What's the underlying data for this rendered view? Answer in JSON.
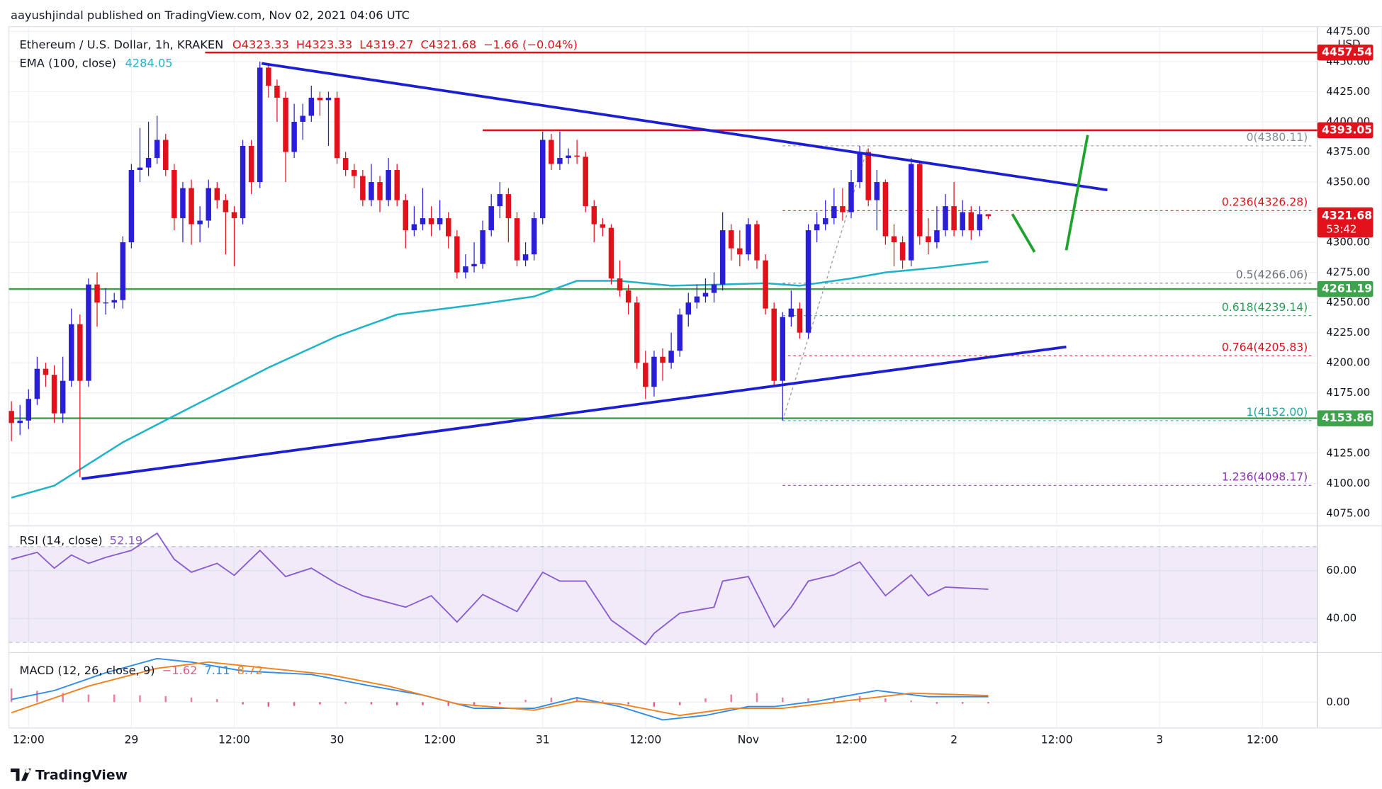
{
  "page_header": "aayushjindal published on TradingView.com, Nov 02, 2021 04:06 UTC",
  "footer": "TradingView",
  "chart_data": [
    {
      "type": "candlestick",
      "title": "Ethereum / U.S. Dollar, 1h, KRAKEN",
      "legend": [
        "O4323.33",
        "H4323.33",
        "L4319.27",
        "C4321.68",
        "−1.66 (−0.04%)"
      ],
      "currency": "USD",
      "countdown": "53:42",
      "xlim": [
        -0.3,
        152.4
      ],
      "xticks": [
        {
          "value": 2,
          "label": "12:00"
        },
        {
          "value": 14,
          "label": "29"
        },
        {
          "value": 26,
          "label": "12:00"
        },
        {
          "value": 38,
          "label": "30"
        },
        {
          "value": 50,
          "label": "12:00"
        },
        {
          "value": 62,
          "label": "31"
        },
        {
          "value": 74,
          "label": "12:00"
        },
        {
          "value": 86,
          "label": "Nov"
        },
        {
          "value": 98,
          "label": "12:00"
        },
        {
          "value": 110,
          "label": "2"
        },
        {
          "value": 122,
          "label": "12:00"
        },
        {
          "value": 134,
          "label": "3"
        },
        {
          "value": 146,
          "label": "12:00"
        }
      ],
      "ylim": [
        4066,
        4479
      ],
      "yticks": [
        {
          "value": 4075,
          "label": "4075.00"
        },
        {
          "value": 4100,
          "label": "4100.00"
        },
        {
          "value": 4125,
          "label": "4125.00"
        },
        {
          "value": 4150,
          "label": "4150.00"
        },
        {
          "value": 4175,
          "label": "4175.00"
        },
        {
          "value": 4200,
          "label": "4200.00"
        },
        {
          "value": 4225,
          "label": "4225.00"
        },
        {
          "value": 4250,
          "label": "4250.00"
        },
        {
          "value": 4275,
          "label": "4275.00"
        },
        {
          "value": 4300,
          "label": "4300.00"
        },
        {
          "value": 4325,
          "label": "4325.00"
        },
        {
          "value": 4350,
          "label": "4350.00"
        },
        {
          "value": 4375,
          "label": "4375.00"
        },
        {
          "value": 4400,
          "label": "4400.00"
        },
        {
          "value": 4425,
          "label": "4425.00"
        },
        {
          "value": 4450,
          "label": "4450.00"
        },
        {
          "value": 4475,
          "label": "4475.00"
        }
      ],
      "grid": true,
      "up_color": "#2a1fd6",
      "down_color": "#e3111b",
      "open": [
        4160,
        4150,
        4152,
        4170,
        4195,
        4190,
        4158,
        4185,
        4232,
        4185,
        4265,
        4250,
        4250,
        4252,
        4300,
        4360,
        4362,
        4370,
        4385,
        4360,
        4320,
        4345,
        4315,
        4318,
        4345,
        4335,
        4325,
        4320,
        4380,
        4350,
        4445,
        4430,
        4420,
        4375,
        4400,
        4405,
        4420,
        4418,
        4420,
        4370,
        4360,
        4355,
        4335,
        4350,
        4335,
        4360,
        4335,
        4310,
        4315,
        4320,
        4315,
        4320,
        4305,
        4275,
        4280,
        4282,
        4310,
        4330,
        4340,
        4320,
        4285,
        4290,
        4320,
        4385,
        4365,
        4370,
        4372,
        4371,
        4330,
        4315,
        4312,
        4270,
        4260,
        4250,
        4200,
        4180,
        4205,
        4200,
        4210,
        4240,
        4250,
        4255,
        4258,
        4265,
        4310,
        4295,
        4290,
        4315,
        4285,
        4245,
        4185,
        4238,
        4245,
        4225,
        4310,
        4315,
        4320,
        4330,
        4325,
        4350,
        4375,
        4335,
        4350,
        4305,
        4300,
        4285,
        4365,
        4305,
        4300,
        4310,
        4330,
        4310,
        4325,
        4310,
        4323.33
      ],
      "high": [
        4168,
        4165,
        4178,
        4205,
        4200,
        4198,
        4205,
        4245,
        4240,
        4270,
        4275,
        4262,
        4258,
        4305,
        4365,
        4395,
        4400,
        4405,
        4390,
        4365,
        4350,
        4352,
        4330,
        4352,
        4350,
        4340,
        4330,
        4385,
        4385,
        4450,
        4448,
        4435,
        4425,
        4415,
        4415,
        4430,
        4425,
        4425,
        4425,
        4375,
        4365,
        4360,
        4365,
        4355,
        4370,
        4365,
        4340,
        4330,
        4345,
        4330,
        4335,
        4325,
        4310,
        4290,
        4300,
        4318,
        4340,
        4350,
        4345,
        4325,
        4300,
        4325,
        4392,
        4390,
        4392,
        4378,
        4385,
        4375,
        4335,
        4320,
        4315,
        4285,
        4265,
        4255,
        4210,
        4210,
        4212,
        4225,
        4245,
        4258,
        4265,
        4270,
        4275,
        4325,
        4315,
        4310,
        4320,
        4318,
        4290,
        4250,
        4242,
        4260,
        4250,
        4315,
        4325,
        4335,
        4345,
        4345,
        4360,
        4380,
        4378,
        4360,
        4352,
        4315,
        4305,
        4370,
        4368,
        4320,
        4330,
        4340,
        4350,
        4335,
        4330,
        4330,
        4323.33
      ],
      "low": [
        4135,
        4140,
        4145,
        4165,
        4180,
        4150,
        4150,
        4180,
        4105,
        4180,
        4230,
        4240,
        4245,
        4245,
        4295,
        4350,
        4355,
        4365,
        4355,
        4310,
        4300,
        4298,
        4300,
        4312,
        4328,
        4290,
        4280,
        4315,
        4340,
        4345,
        4420,
        4400,
        4350,
        4370,
        4385,
        4400,
        4405,
        4380,
        4365,
        4355,
        4345,
        4330,
        4330,
        4325,
        4330,
        4330,
        4295,
        4305,
        4310,
        4305,
        4310,
        4295,
        4270,
        4270,
        4275,
        4278,
        4305,
        4320,
        4300,
        4280,
        4280,
        4285,
        4315,
        4360,
        4360,
        4365,
        4365,
        4325,
        4300,
        4305,
        4265,
        4255,
        4240,
        4195,
        4170,
        4172,
        4185,
        4195,
        4205,
        4230,
        4245,
        4250,
        4250,
        4260,
        4285,
        4280,
        4285,
        4278,
        4240,
        4180,
        4152,
        4230,
        4220,
        4220,
        4300,
        4310,
        4315,
        4318,
        4320,
        4345,
        4330,
        4310,
        4298,
        4280,
        4278,
        4280,
        4298,
        4290,
        4295,
        4305,
        4305,
        4305,
        4302,
        4305,
        4319.27
      ],
      "close": [
        4150,
        4152,
        4170,
        4195,
        4190,
        4158,
        4185,
        4232,
        4185,
        4265,
        4250,
        4250,
        4252,
        4300,
        4360,
        4362,
        4370,
        4385,
        4360,
        4320,
        4345,
        4315,
        4318,
        4345,
        4335,
        4325,
        4320,
        4380,
        4350,
        4445,
        4430,
        4420,
        4375,
        4400,
        4405,
        4420,
        4418,
        4420,
        4370,
        4360,
        4355,
        4335,
        4350,
        4335,
        4360,
        4335,
        4310,
        4315,
        4320,
        4315,
        4320,
        4305,
        4275,
        4280,
        4282,
        4310,
        4330,
        4340,
        4320,
        4285,
        4290,
        4320,
        4385,
        4365,
        4370,
        4372,
        4371,
        4330,
        4315,
        4312,
        4270,
        4260,
        4250,
        4200,
        4180,
        4205,
        4200,
        4210,
        4240,
        4250,
        4255,
        4258,
        4265,
        4310,
        4295,
        4290,
        4315,
        4285,
        4245,
        4185,
        4238,
        4245,
        4225,
        4310,
        4315,
        4320,
        4330,
        4325,
        4350,
        4375,
        4335,
        4350,
        4305,
        4300,
        4285,
        4365,
        4305,
        4300,
        4310,
        4330,
        4310,
        4325,
        4310,
        4323.33,
        4321.68
      ],
      "ema": {
        "name": "EMA (100, close)",
        "color": "#1eb3c8",
        "x": [
          0,
          5,
          13,
          19,
          30,
          38,
          45,
          54,
          61,
          66,
          71,
          77,
          83,
          88,
          92,
          98,
          102,
          108,
          114
        ],
        "values": [
          4088,
          4098,
          4134,
          4156,
          4196,
          4222,
          4240,
          4248,
          4255,
          4268,
          4268,
          4264,
          4265,
          4266,
          4264,
          4270,
          4275,
          4279,
          4284.05
        ]
      },
      "hlines": [
        {
          "value": 4457.54,
          "start": 22.6,
          "color": "#e3111b"
        },
        {
          "value": 4393.05,
          "start": 55,
          "color": "#e3111b"
        },
        {
          "value": 4261.19,
          "start": -0.3,
          "color": "#3fa34d"
        },
        {
          "value": 4153.86,
          "start": -0.3,
          "color": "#3fa34d"
        }
      ],
      "trendlines": [
        {
          "points": [
            [
              29.2,
              4448.5
            ],
            [
              127.9,
              4343.4
            ]
          ],
          "color": "#1c1fd0"
        },
        {
          "points": [
            [
              8.2,
              4103.7
            ],
            [
              123.1,
              4213.2
            ]
          ],
          "color": "#1c1fd0"
        }
      ],
      "arrows": [
        {
          "points": [
            [
              116.8,
              4323.5
            ],
            [
              119.4,
              4291.9
            ]
          ],
          "color": "#1fa32e"
        },
        {
          "points": [
            [
              123.1,
              4293.4
            ],
            [
              125.6,
              4389.0
            ]
          ],
          "color": "#1fa32e"
        }
      ],
      "fib": {
        "range": [
          90,
          151.7
        ],
        "diagonal": [
          [
            90,
            4152
          ],
          [
            100,
            4380.11
          ]
        ],
        "levels": [
          {
            "label": "0(4380.11)",
            "value": 4380.11,
            "color": "#8a8e99"
          },
          {
            "label": "0.236(4326.28)",
            "value": 4326.28,
            "color": "#e3111b"
          },
          {
            "label": "0.5(4266.06)",
            "value": 4266.06,
            "color": "#6b6f7a"
          },
          {
            "label": "0.618(4239.14)",
            "value": 4239.14,
            "color": "#2e9e55"
          },
          {
            "label": "0.764(4205.83)",
            "value": 4205.83,
            "color": "#d3121b"
          },
          {
            "label": "1(4152.00)",
            "value": 4152.0,
            "color": "#1ea5a0"
          },
          {
            "label": "1.236(4098.17)",
            "value": 4098.17,
            "color": "#8e2fb5"
          }
        ]
      }
    },
    {
      "type": "line",
      "name": "RSI (14, close)",
      "color": "#8a5cd1",
      "band": [
        30,
        70
      ],
      "ylim": [
        26.5,
        77.5
      ],
      "yticks": [
        {
          "value": 60,
          "label": "60.00"
        },
        {
          "value": 40,
          "label": "40.00"
        }
      ],
      "x": [
        0,
        3,
        5,
        7,
        9,
        11,
        14,
        17,
        19,
        21,
        24,
        26,
        29,
        32,
        35,
        38,
        41,
        46,
        49,
        52,
        55,
        59,
        62,
        64,
        67,
        70,
        74,
        75,
        78,
        82,
        83,
        86,
        89,
        91,
        93,
        96,
        99,
        102,
        105,
        107,
        109,
        114
      ],
      "values": [
        64.7,
        67.6,
        61,
        66.5,
        63,
        65.5,
        68.4,
        75.6,
        64.7,
        59.3,
        63,
        58,
        68.4,
        57.5,
        61,
        54.5,
        49.5,
        44.7,
        49.5,
        38.5,
        50,
        42.9,
        59.3,
        55.6,
        55.6,
        39.3,
        29.1,
        33.8,
        42.2,
        44.7,
        55.6,
        57.5,
        36.4,
        44.7,
        55.6,
        58.2,
        63.6,
        49.5,
        58.2,
        49.5,
        53.1,
        52.19
      ]
    },
    {
      "type": "macd",
      "name": "MACD (12, 26, close, 9)",
      "legend_values": [
        "−1.62",
        "7.11",
        "8.72"
      ],
      "ylim": [
        -34,
        62
      ],
      "yticks": [
        {
          "value": 0,
          "label": "0.00"
        }
      ],
      "histogram": {
        "color_positive": "#e87fa5",
        "color_negative": "#e85a86",
        "x": [
          0,
          3,
          6,
          9,
          12,
          15,
          18,
          21,
          24,
          27,
          30,
          33,
          36,
          39,
          42,
          45,
          48,
          51,
          54,
          57,
          60,
          63,
          66,
          69,
          72,
          75,
          78,
          81,
          84,
          87,
          90,
          93,
          96,
          99,
          102,
          105,
          108,
          111,
          114
        ],
        "values": [
          18,
          15,
          12,
          10,
          10,
          9,
          8,
          6,
          4,
          -3,
          -6,
          -5,
          -3,
          -2,
          -3,
          -4,
          -4,
          -5,
          -5,
          -3,
          3,
          6,
          5,
          2,
          -3,
          -6,
          -4,
          5,
          10,
          12,
          6,
          5,
          6,
          8,
          5,
          2,
          -2,
          -2,
          -1.62
        ]
      },
      "series": [
        {
          "name": "MACD",
          "color": "#2f8be8",
          "x": [
            0,
            5,
            11,
            17,
            21,
            27,
            35,
            42,
            48,
            54,
            61,
            66,
            71,
            76,
            81,
            86,
            89,
            94,
            101,
            107,
            114
          ],
          "values": [
            3.5,
            15.3,
            38.8,
            57.6,
            52.9,
            41.2,
            36.5,
            21.2,
            9.4,
            -8.2,
            -8.2,
            5.9,
            -5.9,
            -23.5,
            -17.6,
            -5.9,
            -5.9,
            1.2,
            15.3,
            7.1,
            7.11
          ]
        },
        {
          "name": "Signal",
          "color": "#f2811d",
          "x": [
            0,
            9,
            17,
            23,
            30,
            37,
            44,
            52,
            61,
            66,
            71,
            78,
            84,
            90,
            97,
            105,
            114
          ],
          "values": [
            -14,
            21.2,
            44.7,
            52.9,
            44.7,
            36.5,
            21.2,
            -2.4,
            -10.6,
            1.2,
            -2.4,
            -17.6,
            -8.2,
            -8.2,
            1.2,
            11.8,
            8.72
          ]
        }
      ]
    }
  ]
}
